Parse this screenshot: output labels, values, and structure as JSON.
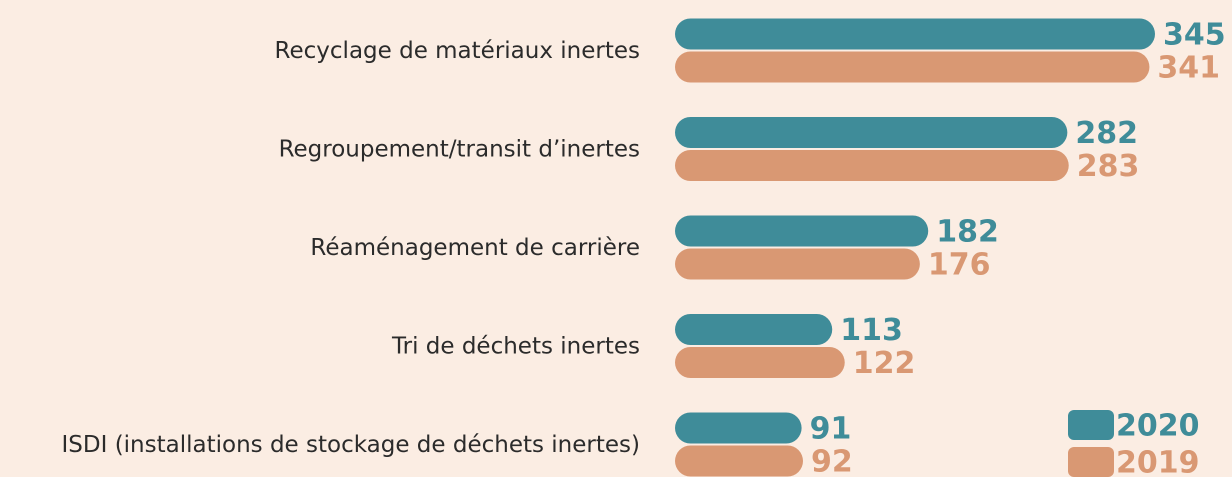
{
  "chart_data": {
    "type": "bar",
    "orientation": "horizontal",
    "categories": [
      "Recyclage de matériaux inertes",
      "Regroupement/transit d’inertes",
      "Réaménagement de carrière",
      "Tri de déchets inertes",
      "ISDI (installations de stockage de déchets inertes)"
    ],
    "series": [
      {
        "name": "2020",
        "color": "#3f8c99",
        "values": [
          345,
          282,
          182,
          113,
          91
        ]
      },
      {
        "name": "2019",
        "color": "#d99873",
        "values": [
          341,
          283,
          176,
          122,
          92
        ]
      }
    ],
    "legend": "lower right"
  }
}
